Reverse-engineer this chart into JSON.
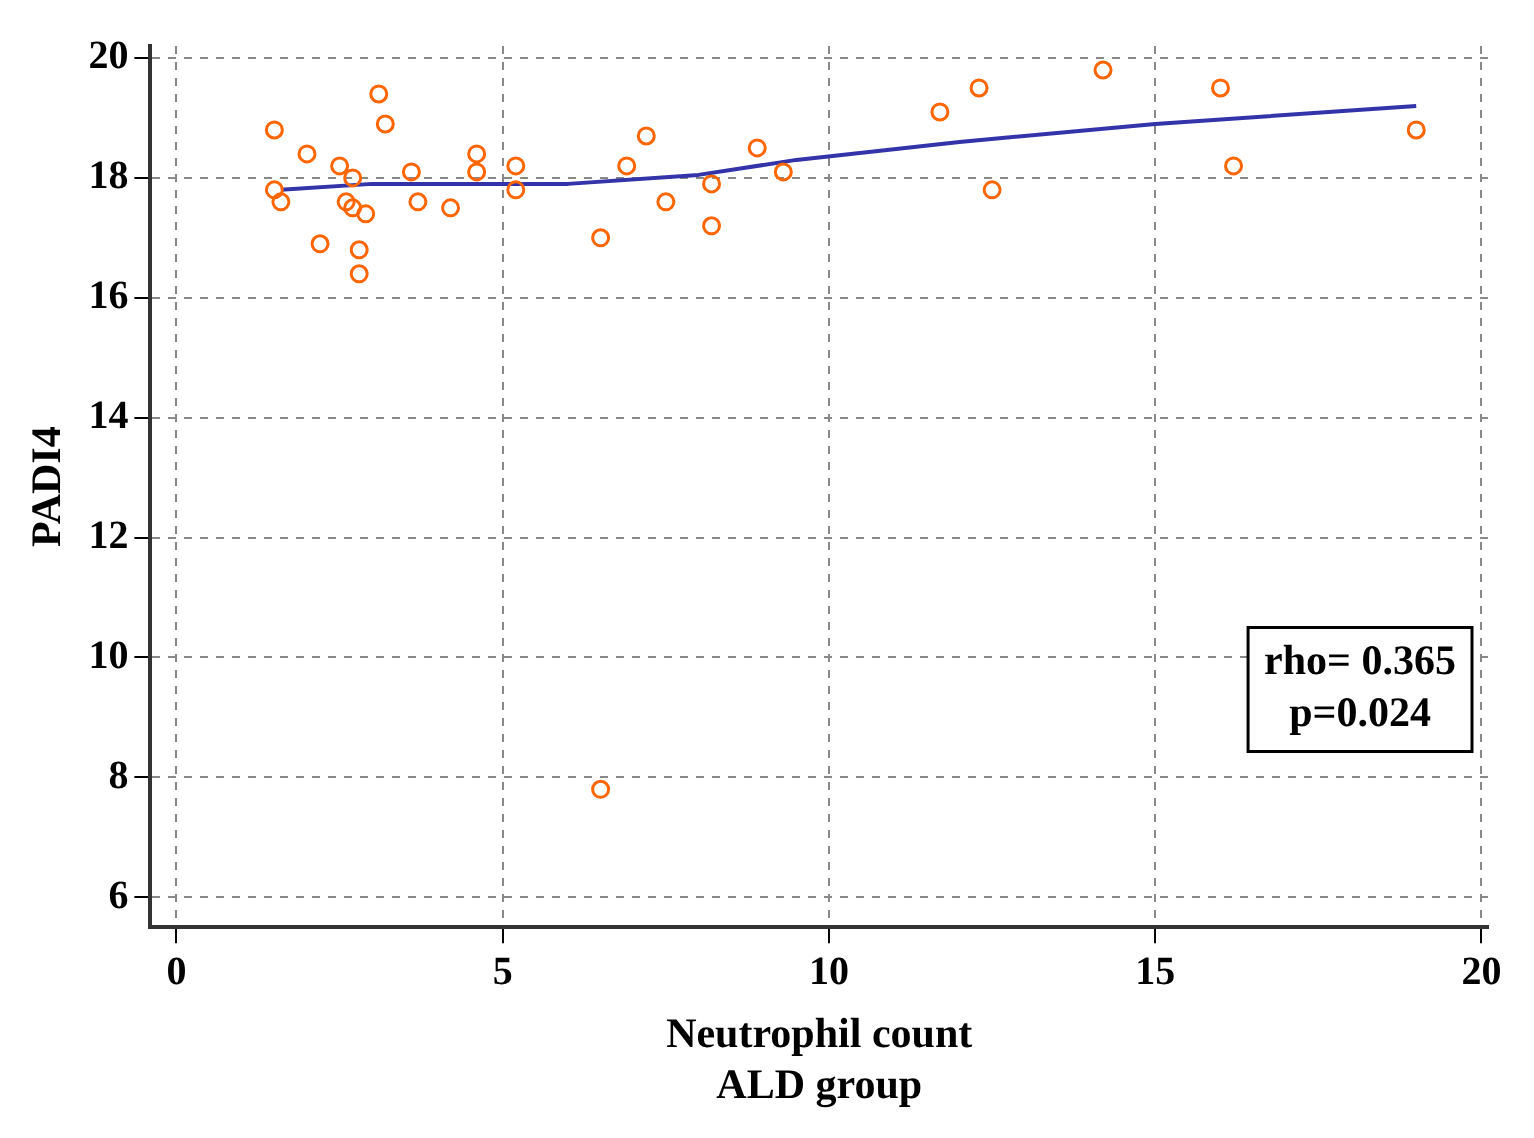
{
  "chart_data": {
    "type": "scatter",
    "xlabel": "Neutrophil count\nALD group",
    "ylabel": "PADI4",
    "xlim": [
      -0.4,
      20.1
    ],
    "ylim": [
      5.5,
      20.2
    ],
    "xticks": [
      0,
      5,
      10,
      15,
      20
    ],
    "yticks": [
      6,
      8,
      10,
      12,
      14,
      16,
      18,
      20
    ],
    "grid": true,
    "marker": "circle",
    "annotations": [
      "rho= 0.365",
      "p=0.024"
    ],
    "series": [
      {
        "color": "#ff6600",
        "x": [
          1.5,
          1.5,
          1.6,
          2.0,
          2.2,
          2.5,
          2.7,
          2.6,
          2.7,
          2.9,
          2.8,
          2.8,
          3.1,
          3.2,
          3.6,
          3.7,
          4.2,
          4.6,
          4.6,
          5.2,
          5.2,
          6.5,
          6.9,
          7.2,
          7.5,
          8.2,
          8.2,
          8.9,
          9.3,
          11.7,
          12.3,
          12.5,
          14.2,
          16.0,
          16.2,
          19.0,
          6.5
        ],
        "values": [
          18.8,
          17.8,
          17.6,
          18.4,
          16.9,
          18.2,
          18.0,
          17.6,
          17.5,
          17.4,
          16.8,
          16.4,
          19.4,
          18.9,
          18.1,
          17.6,
          17.5,
          18.4,
          18.1,
          18.2,
          17.8,
          17.0,
          18.2,
          18.7,
          17.6,
          17.9,
          17.2,
          18.5,
          18.1,
          19.1,
          19.5,
          17.8,
          19.8,
          19.5,
          18.2,
          18.8,
          7.8
        ]
      },
      {
        "type": "line",
        "color": "#3333aa",
        "marker": "none",
        "x": [
          1.6,
          3,
          6,
          8,
          9.5,
          12,
          15,
          19
        ],
        "values": [
          17.8,
          17.9,
          17.9,
          18.05,
          18.3,
          18.6,
          18.9,
          19.2
        ]
      }
    ]
  }
}
